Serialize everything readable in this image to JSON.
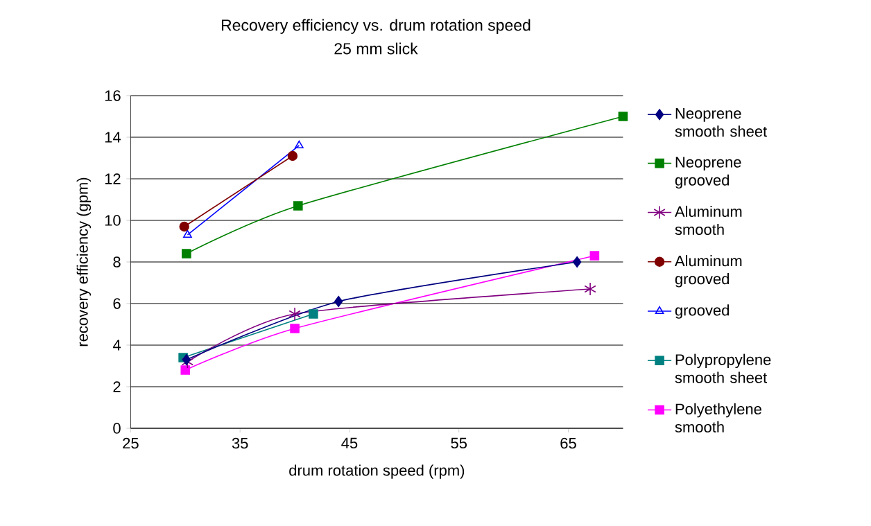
{
  "chart_data": {
    "type": "line",
    "title": "Recovery efficiency vs. drum rotation speed",
    "subtitle": "25 mm slick",
    "xlabel": "drum rotation speed (rpm)",
    "ylabel": "recovery efficiency (gpm)",
    "xlim": [
      25,
      70
    ],
    "xticks": [
      25,
      35,
      45,
      55,
      65
    ],
    "ylim": [
      0,
      16
    ],
    "yticks": [
      0,
      2,
      4,
      6,
      8,
      10,
      12,
      14,
      16
    ],
    "grid": "y",
    "legend": "right",
    "series": [
      {
        "name": "Neoprene smooth sheet",
        "color": "#000080",
        "marker": "diamond",
        "x": [
          30.1,
          44.0,
          65.8
        ],
        "values": [
          3.3,
          6.1,
          8.0
        ]
      },
      {
        "name": "Neoprene grooved",
        "color": "#008000",
        "marker": "square",
        "x": [
          30.1,
          40.3,
          70.0
        ],
        "values": [
          8.4,
          10.7,
          15.0
        ]
      },
      {
        "name": "Aluminum smooth",
        "color": "#800080",
        "marker": "cross",
        "x": [
          30.2,
          40.0,
          67.0
        ],
        "values": [
          3.2,
          5.5,
          6.7
        ]
      },
      {
        "name": "Aluminum grooved",
        "color": "#800000",
        "marker": "circle",
        "x": [
          29.9,
          39.8
        ],
        "values": [
          9.7,
          13.1
        ]
      },
      {
        "name": "grooved",
        "color": "#0000ff",
        "marker": "triangle",
        "x": [
          30.2,
          40.4
        ],
        "values": [
          9.3,
          13.6
        ]
      },
      {
        "name": "Polypropylene smooth sheet",
        "color": "#008080",
        "marker": "square",
        "x": [
          29.8,
          41.7
        ],
        "values": [
          3.4,
          5.5
        ]
      },
      {
        "name": "Polyethylene smooth",
        "color": "#ff00ff",
        "marker": "square",
        "x": [
          30.0,
          40.0,
          67.4
        ],
        "values": [
          2.8,
          4.8,
          8.3
        ]
      }
    ]
  }
}
